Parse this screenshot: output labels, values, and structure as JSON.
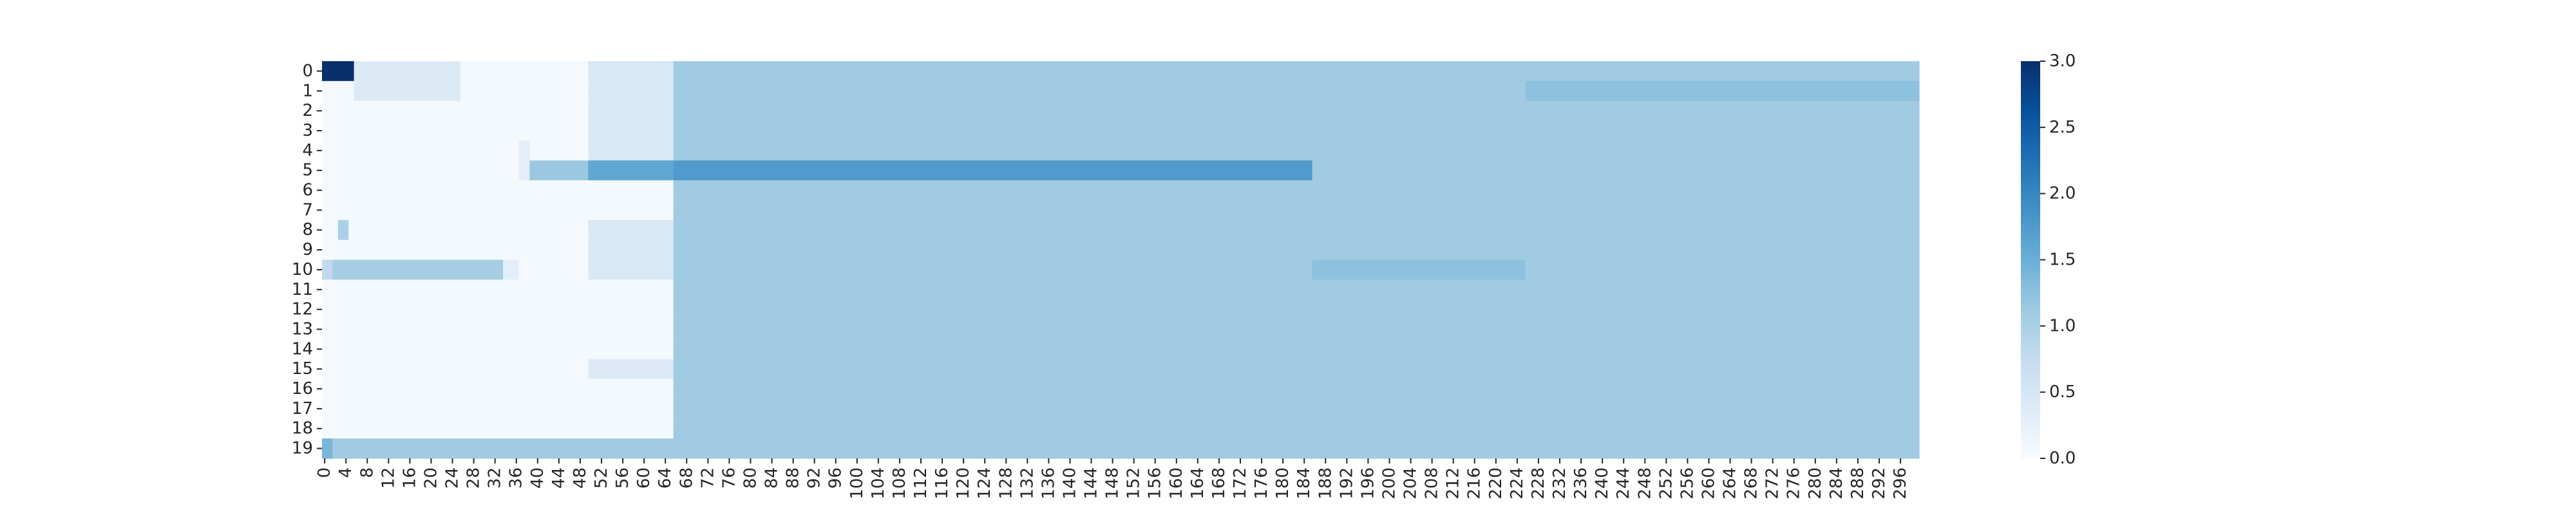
{
  "chart_data": {
    "type": "heatmap",
    "title": "",
    "xlabel": "",
    "ylabel": "",
    "n_rows": 20,
    "n_cols": 300,
    "row_labels": [
      "0",
      "1",
      "2",
      "3",
      "4",
      "5",
      "6",
      "7",
      "8",
      "9",
      "10",
      "11",
      "12",
      "13",
      "14",
      "15",
      "16",
      "17",
      "18",
      "19"
    ],
    "x_tick_step": 4,
    "x_tick_labels": [
      "0",
      "4",
      "8",
      "12",
      "16",
      "20",
      "24",
      "28",
      "32",
      "36",
      "40",
      "44",
      "48",
      "52",
      "56",
      "60",
      "64",
      "68",
      "72",
      "76",
      "80",
      "84",
      "88",
      "92",
      "96",
      "100",
      "104",
      "108",
      "112",
      "116",
      "120",
      "124",
      "128",
      "132",
      "136",
      "140",
      "144",
      "148",
      "152",
      "156",
      "160",
      "164",
      "168",
      "172",
      "176",
      "180",
      "184",
      "188",
      "192",
      "196",
      "200",
      "204",
      "208",
      "212",
      "216",
      "220",
      "224",
      "228",
      "232",
      "236",
      "240",
      "244",
      "248",
      "252",
      "256",
      "260",
      "264",
      "268",
      "272",
      "276",
      "280",
      "284",
      "288",
      "292",
      "296"
    ],
    "colormap": "Blues",
    "vmin": 0,
    "vmax": 3,
    "colorbar_ticks": [
      "0.0",
      "0.5",
      "1.0",
      "1.5",
      "2.0",
      "2.5",
      "3.0"
    ],
    "cell_rules": [
      {
        "rows": [
          0,
          19
        ],
        "cols": [
          66,
          299
        ],
        "value": 1.1
      },
      {
        "rows": [
          0,
          19
        ],
        "cols": [
          0,
          299
        ],
        "value": 0.05,
        "note_cols_max": 65
      },
      {
        "rows": [
          0,
          0
        ],
        "cols": [
          0,
          5
        ],
        "value": 3.0
      },
      {
        "rows": [
          0,
          1
        ],
        "cols": [
          6,
          25
        ],
        "value": 0.4
      },
      {
        "rows": [
          0,
          4
        ],
        "cols": [
          50,
          65
        ],
        "value": 0.45
      },
      {
        "rows": [
          5,
          5
        ],
        "cols": [
          39,
          49
        ],
        "value": 1.15
      },
      {
        "rows": [
          5,
          5
        ],
        "cols": [
          50,
          65
        ],
        "value": 1.6
      },
      {
        "rows": [
          5,
          5
        ],
        "cols": [
          66,
          185
        ],
        "value": 1.75
      },
      {
        "rows": [
          4,
          5
        ],
        "cols": [
          37,
          38
        ],
        "value": 0.3
      },
      {
        "rows": [
          8,
          10
        ],
        "cols": [
          50,
          65
        ],
        "value": 0.45
      },
      {
        "rows": [
          8,
          8
        ],
        "cols": [
          3,
          4
        ],
        "value": 1.0
      },
      {
        "rows": [
          10,
          10
        ],
        "cols": [
          0,
          1
        ],
        "value": 0.8
      },
      {
        "rows": [
          10,
          10
        ],
        "cols": [
          2,
          33
        ],
        "value": 1.05
      },
      {
        "rows": [
          10,
          10
        ],
        "cols": [
          34,
          36
        ],
        "value": 0.3
      },
      {
        "rows": [
          10,
          10
        ],
        "cols": [
          186,
          225
        ],
        "value": 1.25
      },
      {
        "rows": [
          1,
          1
        ],
        "cols": [
          226,
          299
        ],
        "value": 1.25
      },
      {
        "rows": [
          15,
          15
        ],
        "cols": [
          50,
          65
        ],
        "value": 0.4
      },
      {
        "rows": [
          19,
          19
        ],
        "cols": [
          0,
          1
        ],
        "value": 1.4
      },
      {
        "rows": [
          19,
          19
        ],
        "cols": [
          2,
          65
        ],
        "value": 1.1
      }
    ]
  }
}
